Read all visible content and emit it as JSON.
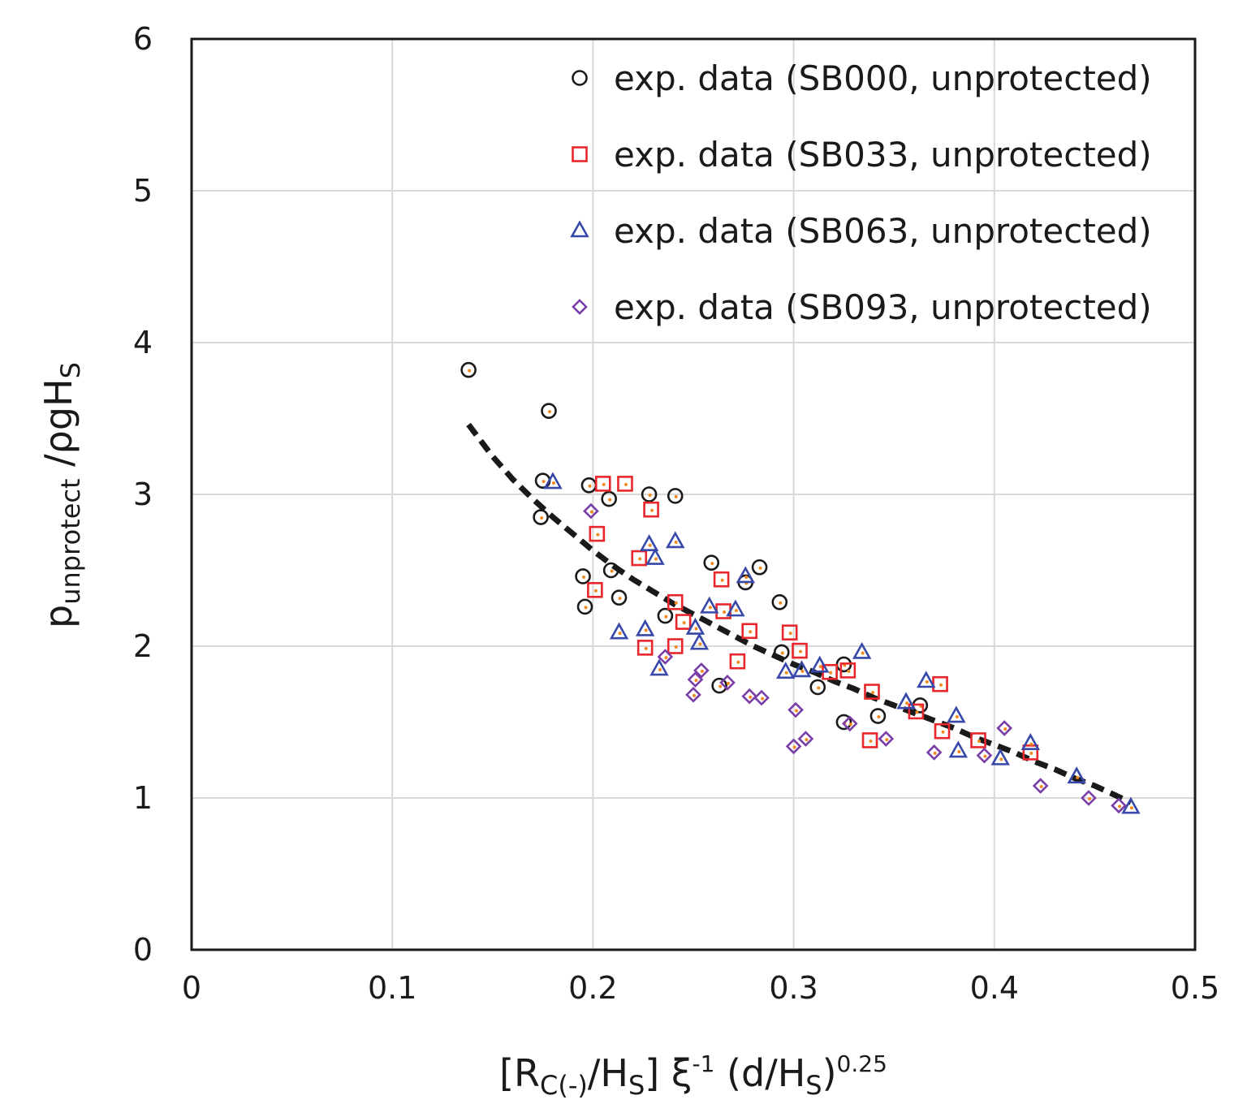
{
  "chart_data": {
    "type": "scatter",
    "x_axis": {
      "min": 0,
      "max": 0.5,
      "ticks": [
        "0",
        "0.1",
        "0.2",
        "0.3",
        "0.4",
        "0.5"
      ],
      "label_parts": [
        "[R",
        "C(-)",
        "/H",
        "S",
        "] ξ",
        "-1",
        " (d/H",
        "S",
        ")",
        "0.25"
      ]
    },
    "y_axis": {
      "min": 0,
      "max": 6,
      "ticks": [
        "0",
        "1",
        "2",
        "3",
        "4",
        "5",
        "6"
      ],
      "label_parts": [
        "p",
        "unprotect",
        " /ρgH",
        "S"
      ]
    },
    "grid": true,
    "legend_position": "top-right",
    "series": [
      {
        "name": "exp. data (SB000, unprotected)",
        "marker": "circle",
        "color": "#1a1a1a",
        "points": [
          [
            0.138,
            3.82
          ],
          [
            0.178,
            3.55
          ],
          [
            0.175,
            3.09
          ],
          [
            0.174,
            2.85
          ],
          [
            0.198,
            3.06
          ],
          [
            0.208,
            2.97
          ],
          [
            0.228,
            3.0
          ],
          [
            0.241,
            2.99
          ],
          [
            0.195,
            2.46
          ],
          [
            0.196,
            2.26
          ],
          [
            0.209,
            2.5
          ],
          [
            0.213,
            2.32
          ],
          [
            0.236,
            2.2
          ],
          [
            0.259,
            2.55
          ],
          [
            0.276,
            2.42
          ],
          [
            0.283,
            2.52
          ],
          [
            0.293,
            2.29
          ],
          [
            0.263,
            1.74
          ],
          [
            0.294,
            1.96
          ],
          [
            0.312,
            1.73
          ],
          [
            0.325,
            1.88
          ],
          [
            0.325,
            1.5
          ],
          [
            0.342,
            1.54
          ],
          [
            0.363,
            1.61
          ]
        ]
      },
      {
        "name": "exp. data (SB033, unprotected)",
        "marker": "square",
        "color": "#e8262b",
        "points": [
          [
            0.205,
            3.07
          ],
          [
            0.216,
            3.07
          ],
          [
            0.229,
            2.9
          ],
          [
            0.202,
            2.74
          ],
          [
            0.201,
            2.37
          ],
          [
            0.223,
            2.58
          ],
          [
            0.241,
            2.29
          ],
          [
            0.245,
            2.16
          ],
          [
            0.241,
            2.0
          ],
          [
            0.226,
            1.99
          ],
          [
            0.264,
            2.44
          ],
          [
            0.265,
            2.23
          ],
          [
            0.278,
            2.1
          ],
          [
            0.272,
            1.9
          ],
          [
            0.298,
            2.09
          ],
          [
            0.303,
            1.97
          ],
          [
            0.318,
            1.83
          ],
          [
            0.327,
            1.84
          ],
          [
            0.339,
            1.7
          ],
          [
            0.338,
            1.38
          ],
          [
            0.361,
            1.57
          ],
          [
            0.373,
            1.75
          ],
          [
            0.374,
            1.44
          ],
          [
            0.392,
            1.38
          ],
          [
            0.418,
            1.3
          ]
        ]
      },
      {
        "name": "exp. data (SB063, unprotected)",
        "marker": "triangle",
        "color": "#3748a8",
        "points": [
          [
            0.18,
            3.08
          ],
          [
            0.228,
            2.67
          ],
          [
            0.231,
            2.58
          ],
          [
            0.241,
            2.69
          ],
          [
            0.213,
            2.09
          ],
          [
            0.226,
            2.11
          ],
          [
            0.233,
            1.85
          ],
          [
            0.251,
            2.12
          ],
          [
            0.253,
            2.02
          ],
          [
            0.258,
            2.26
          ],
          [
            0.271,
            2.24
          ],
          [
            0.276,
            2.46
          ],
          [
            0.296,
            1.83
          ],
          [
            0.304,
            1.84
          ],
          [
            0.313,
            1.87
          ],
          [
            0.334,
            1.96
          ],
          [
            0.356,
            1.63
          ],
          [
            0.366,
            1.77
          ],
          [
            0.381,
            1.54
          ],
          [
            0.382,
            1.31
          ],
          [
            0.403,
            1.26
          ],
          [
            0.418,
            1.36
          ],
          [
            0.441,
            1.14
          ],
          [
            0.468,
            0.94
          ]
        ]
      },
      {
        "name": "exp. data (SB093, unprotected)",
        "marker": "diamond",
        "color": "#7a3ea8",
        "points": [
          [
            0.199,
            2.89
          ],
          [
            0.236,
            1.93
          ],
          [
            0.251,
            1.78
          ],
          [
            0.254,
            1.84
          ],
          [
            0.25,
            1.68
          ],
          [
            0.267,
            1.76
          ],
          [
            0.278,
            1.67
          ],
          [
            0.284,
            1.66
          ],
          [
            0.301,
            1.58
          ],
          [
            0.3,
            1.34
          ],
          [
            0.306,
            1.39
          ],
          [
            0.328,
            1.49
          ],
          [
            0.346,
            1.39
          ],
          [
            0.37,
            1.3
          ],
          [
            0.395,
            1.28
          ],
          [
            0.405,
            1.46
          ],
          [
            0.423,
            1.08
          ],
          [
            0.447,
            1.0
          ],
          [
            0.462,
            0.95
          ]
        ]
      }
    ],
    "trend_line": {
      "style": "dashed",
      "color": "#1a1a1a",
      "points": [
        [
          0.138,
          3.46
        ],
        [
          0.15,
          3.25
        ],
        [
          0.16,
          3.1
        ],
        [
          0.17,
          2.97
        ],
        [
          0.18,
          2.85
        ],
        [
          0.19,
          2.74
        ],
        [
          0.2,
          2.63
        ],
        [
          0.21,
          2.53
        ],
        [
          0.22,
          2.44
        ],
        [
          0.23,
          2.36
        ],
        [
          0.24,
          2.28
        ],
        [
          0.25,
          2.21
        ],
        [
          0.26,
          2.14
        ],
        [
          0.27,
          2.07
        ],
        [
          0.28,
          2.0
        ],
        [
          0.29,
          1.94
        ],
        [
          0.3,
          1.88
        ],
        [
          0.31,
          1.83
        ],
        [
          0.32,
          1.77
        ],
        [
          0.33,
          1.72
        ],
        [
          0.34,
          1.66
        ],
        [
          0.35,
          1.61
        ],
        [
          0.36,
          1.56
        ],
        [
          0.37,
          1.51
        ],
        [
          0.38,
          1.46
        ],
        [
          0.39,
          1.4
        ],
        [
          0.4,
          1.35
        ],
        [
          0.41,
          1.3
        ],
        [
          0.42,
          1.24
        ],
        [
          0.43,
          1.19
        ],
        [
          0.44,
          1.13
        ],
        [
          0.45,
          1.08
        ],
        [
          0.46,
          1.02
        ],
        [
          0.468,
          0.97
        ]
      ]
    }
  }
}
